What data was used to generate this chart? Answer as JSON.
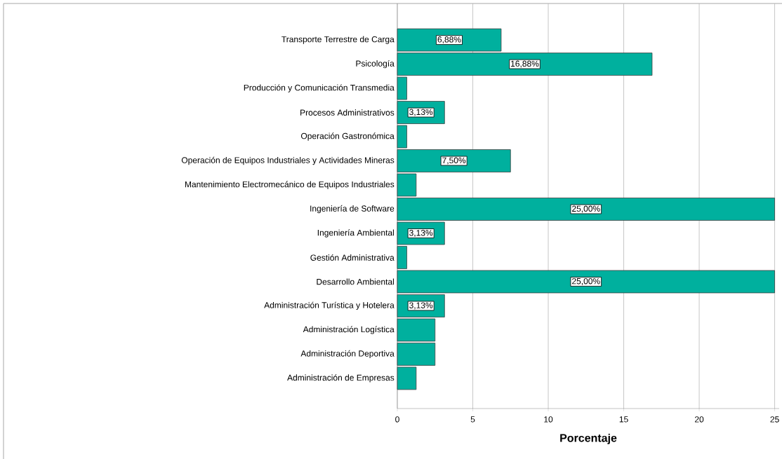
{
  "chart_data": {
    "type": "bar",
    "orientation": "horizontal",
    "xlabel": "Porcentaje",
    "categories": [
      "Transporte Terrestre de Carga",
      "Psicología",
      "Producción y Comunicación Transmedia",
      "Procesos Administrativos",
      "Operación Gastronómica",
      "Operación de Equipos Industriales y Actividades Mineras",
      "Mantenimiento Electromecánico de Equipos Industriales",
      "Ingeniería de Software",
      "Ingeniería Ambiental",
      "Gestión Administrativa",
      "Desarrollo Ambiental",
      "Administración Turística y Hotelera",
      "Administración Logística",
      "Administración Deportiva",
      "Administración de Empresas"
    ],
    "values": [
      6.88,
      16.88,
      0.63,
      3.13,
      0.63,
      7.5,
      1.25,
      25,
      3.13,
      0.63,
      25,
      3.13,
      2.5,
      2.5,
      1.25
    ],
    "value_labels": [
      "6,88%",
      "16,88%",
      null,
      "3,13%",
      null,
      "7,50%",
      null,
      "25,00%",
      "3,13%",
      null,
      "25,00%",
      "3,13%",
      null,
      null,
      null
    ],
    "color": "#00b09e",
    "xlim": [
      0,
      25.3
    ],
    "xticks": [
      0,
      5,
      10,
      15,
      20,
      25
    ],
    "grid": "x"
  }
}
